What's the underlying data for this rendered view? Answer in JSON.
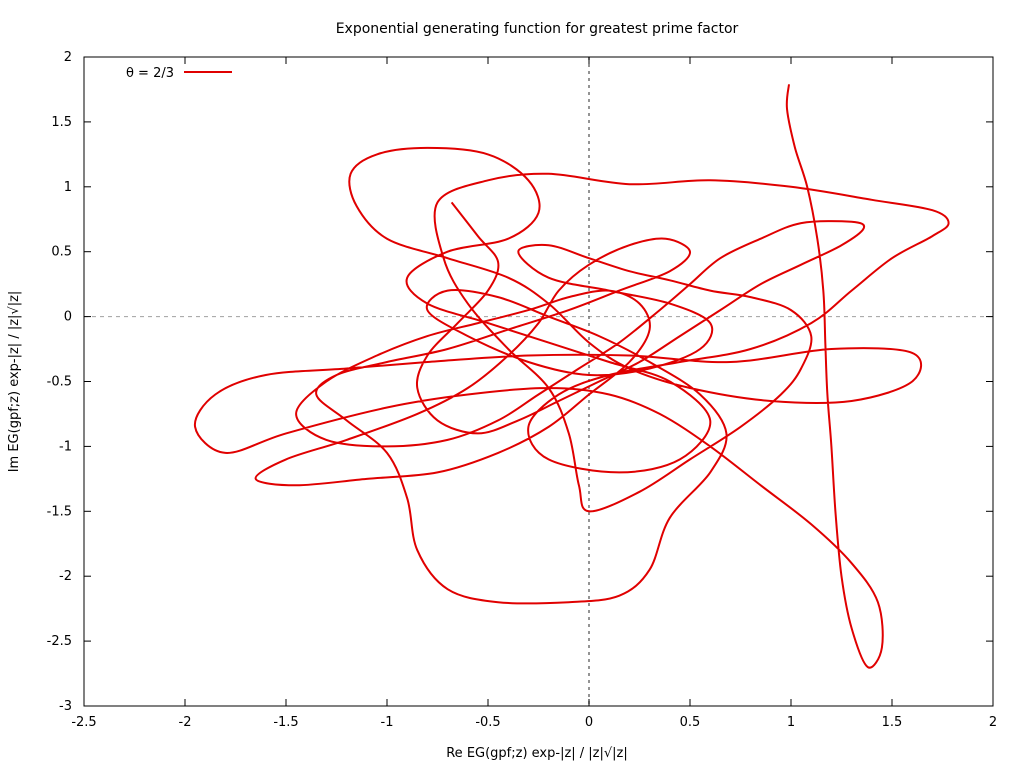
{
  "chart_data": {
    "type": "line",
    "title": "Exponential generating function for greatest prime factor",
    "xlabel": "Re EG(gpf;z) exp-|z| / |z|√|z|",
    "ylabel": "Im EG(gpf;z) exp-|z| / |z|√|z|",
    "xlim": [
      -2.5,
      2
    ],
    "ylim": [
      -3,
      2
    ],
    "xticks": [
      -2.5,
      -2,
      -1.5,
      -1,
      -0.5,
      0,
      0.5,
      1,
      1.5,
      2
    ],
    "xtick_labels": [
      "-2.5",
      "-2",
      "-1.5",
      "-1",
      "-0.5",
      "0",
      "0.5",
      "1",
      "1.5",
      "2"
    ],
    "yticks": [
      -3,
      -2.5,
      -2,
      -1.5,
      -1,
      -0.5,
      0,
      0.5,
      1,
      1.5,
      2
    ],
    "ytick_labels": [
      "-3",
      "-2.5",
      "-2",
      "-1.5",
      "-1",
      "-0.5",
      "0",
      "0.5",
      "1",
      "1.5",
      "2"
    ],
    "zero_axes": true,
    "legend_position": "top-left",
    "series": [
      {
        "name": "θ = 2/3",
        "color": "#e00000",
        "points": [
          [
            0.99,
            1.79
          ],
          [
            0.98,
            1.6
          ],
          [
            1.02,
            1.3
          ],
          [
            1.08,
            1.0
          ],
          [
            1.13,
            0.6
          ],
          [
            1.16,
            0.2
          ],
          [
            1.17,
            -0.2
          ],
          [
            1.18,
            -0.6
          ],
          [
            1.2,
            -1.0
          ],
          [
            1.22,
            -1.5
          ],
          [
            1.25,
            -2.0
          ],
          [
            1.3,
            -2.4
          ],
          [
            1.38,
            -2.7
          ],
          [
            1.45,
            -2.55
          ],
          [
            1.43,
            -2.2
          ],
          [
            1.3,
            -1.9
          ],
          [
            1.1,
            -1.6
          ],
          [
            0.85,
            -1.3
          ],
          [
            0.6,
            -1.0
          ],
          [
            0.35,
            -0.75
          ],
          [
            0.1,
            -0.6
          ],
          [
            -0.2,
            -0.55
          ],
          [
            -0.6,
            -0.6
          ],
          [
            -1.0,
            -0.7
          ],
          [
            -1.5,
            -0.9
          ],
          [
            -1.8,
            -1.05
          ],
          [
            -1.95,
            -0.85
          ],
          [
            -1.85,
            -0.6
          ],
          [
            -1.6,
            -0.45
          ],
          [
            -1.2,
            -0.4
          ],
          [
            -0.8,
            -0.35
          ],
          [
            -0.3,
            -0.3
          ],
          [
            0.2,
            -0.3
          ],
          [
            0.7,
            -0.35
          ],
          [
            1.2,
            -0.25
          ],
          [
            1.6,
            -0.28
          ],
          [
            1.6,
            -0.5
          ],
          [
            1.3,
            -0.65
          ],
          [
            0.9,
            -0.65
          ],
          [
            0.5,
            -0.55
          ],
          [
            0.2,
            -0.4
          ],
          [
            0.0,
            -0.2
          ],
          [
            -0.2,
            0.1
          ],
          [
            -0.4,
            0.3
          ],
          [
            -0.7,
            0.45
          ],
          [
            -1.0,
            0.6
          ],
          [
            -1.15,
            0.85
          ],
          [
            -1.18,
            1.1
          ],
          [
            -1.05,
            1.25
          ],
          [
            -0.8,
            1.3
          ],
          [
            -0.5,
            1.25
          ],
          [
            -0.3,
            1.05
          ],
          [
            -0.25,
            0.8
          ],
          [
            -0.4,
            0.6
          ],
          [
            -0.7,
            0.5
          ],
          [
            -0.9,
            0.3
          ],
          [
            -0.8,
            0.1
          ],
          [
            -0.5,
            -0.05
          ],
          [
            -0.2,
            -0.2
          ],
          [
            0.1,
            -0.35
          ],
          [
            0.4,
            -0.5
          ],
          [
            0.6,
            -0.8
          ],
          [
            0.45,
            -1.1
          ],
          [
            0.15,
            -1.2
          ],
          [
            -0.2,
            -1.1
          ],
          [
            -0.3,
            -0.85
          ],
          [
            -0.15,
            -0.6
          ],
          [
            0.1,
            -0.45
          ],
          [
            0.45,
            -0.35
          ],
          [
            0.8,
            -0.25
          ],
          [
            1.1,
            -0.05
          ],
          [
            1.3,
            0.2
          ],
          [
            1.5,
            0.45
          ],
          [
            1.7,
            0.62
          ],
          [
            1.78,
            0.72
          ],
          [
            1.7,
            0.82
          ],
          [
            1.4,
            0.9
          ],
          [
            1.0,
            1.0
          ],
          [
            0.6,
            1.05
          ],
          [
            0.2,
            1.02
          ],
          [
            -0.2,
            1.1
          ],
          [
            -0.5,
            1.05
          ],
          [
            -0.75,
            0.88
          ],
          [
            -0.72,
            0.45
          ],
          [
            -0.6,
            0.1
          ],
          [
            -0.4,
            -0.25
          ],
          [
            -0.2,
            -0.55
          ],
          [
            -0.1,
            -0.9
          ],
          [
            -0.05,
            -1.3
          ],
          [
            0.0,
            -1.5
          ],
          [
            0.25,
            -1.35
          ],
          [
            0.5,
            -1.1
          ],
          [
            0.75,
            -0.85
          ],
          [
            0.95,
            -0.6
          ],
          [
            1.05,
            -0.4
          ],
          [
            1.1,
            -0.15
          ],
          [
            1.0,
            0.05
          ],
          [
            0.8,
            0.15
          ],
          [
            0.6,
            0.2
          ],
          [
            0.4,
            0.28
          ],
          [
            0.2,
            0.35
          ],
          [
            0.0,
            0.45
          ],
          [
            -0.2,
            0.55
          ],
          [
            -0.35,
            0.5
          ],
          [
            -0.2,
            0.3
          ],
          [
            0.1,
            0.2
          ],
          [
            0.4,
            0.1
          ],
          [
            0.6,
            -0.05
          ],
          [
            0.55,
            -0.25
          ],
          [
            0.3,
            -0.4
          ],
          [
            0.0,
            -0.45
          ],
          [
            -0.3,
            -0.35
          ],
          [
            -0.6,
            -0.15
          ],
          [
            -0.8,
            0.05
          ],
          [
            -0.7,
            0.2
          ],
          [
            -0.45,
            0.15
          ],
          [
            -0.2,
            0.0
          ],
          [
            0.05,
            -0.15
          ],
          [
            0.3,
            -0.35
          ],
          [
            0.55,
            -0.6
          ],
          [
            0.68,
            -0.9
          ],
          [
            0.6,
            -1.2
          ],
          [
            0.4,
            -1.55
          ],
          [
            0.3,
            -1.95
          ],
          [
            0.15,
            -2.15
          ],
          [
            -0.1,
            -2.2
          ],
          [
            -0.45,
            -2.2
          ],
          [
            -0.7,
            -2.1
          ],
          [
            -0.85,
            -1.8
          ],
          [
            -0.9,
            -1.4
          ],
          [
            -1.0,
            -1.05
          ],
          [
            -1.2,
            -0.8
          ],
          [
            -1.35,
            -0.6
          ],
          [
            -1.25,
            -0.45
          ],
          [
            -1.0,
            -0.35
          ],
          [
            -0.7,
            -0.25
          ],
          [
            -0.4,
            -0.1
          ],
          [
            -0.1,
            0.05
          ],
          [
            0.15,
            0.2
          ],
          [
            0.4,
            0.35
          ],
          [
            0.5,
            0.5
          ],
          [
            0.38,
            0.6
          ],
          [
            0.2,
            0.55
          ],
          [
            0.0,
            0.4
          ],
          [
            -0.15,
            0.2
          ],
          [
            -0.25,
            -0.05
          ],
          [
            -0.4,
            -0.3
          ],
          [
            -0.6,
            -0.55
          ],
          [
            -0.85,
            -0.75
          ],
          [
            -1.2,
            -0.95
          ],
          [
            -1.5,
            -1.1
          ],
          [
            -1.65,
            -1.25
          ],
          [
            -1.45,
            -1.3
          ],
          [
            -1.1,
            -1.25
          ],
          [
            -0.75,
            -1.2
          ],
          [
            -0.45,
            -1.05
          ],
          [
            -0.2,
            -0.85
          ],
          [
            0.0,
            -0.6
          ],
          [
            0.2,
            -0.35
          ],
          [
            0.3,
            -0.1
          ],
          [
            0.25,
            0.1
          ],
          [
            0.1,
            0.2
          ],
          [
            -0.1,
            0.15
          ],
          [
            -0.3,
            0.05
          ],
          [
            -0.55,
            -0.05
          ],
          [
            -0.8,
            -0.15
          ],
          [
            -1.05,
            -0.3
          ],
          [
            -1.3,
            -0.5
          ],
          [
            -1.45,
            -0.75
          ],
          [
            -1.3,
            -0.95
          ],
          [
            -1.0,
            -1.0
          ],
          [
            -0.7,
            -0.95
          ],
          [
            -0.45,
            -0.8
          ],
          [
            -0.25,
            -0.6
          ],
          [
            -0.05,
            -0.4
          ],
          [
            0.15,
            -0.2
          ],
          [
            0.35,
            0.05
          ],
          [
            0.5,
            0.25
          ],
          [
            0.65,
            0.45
          ],
          [
            0.85,
            0.6
          ],
          [
            1.05,
            0.72
          ],
          [
            1.3,
            0.73
          ],
          [
            1.36,
            0.68
          ],
          [
            1.25,
            0.55
          ],
          [
            1.05,
            0.4
          ],
          [
            0.85,
            0.25
          ],
          [
            0.65,
            0.05
          ],
          [
            0.45,
            -0.15
          ],
          [
            0.25,
            -0.35
          ],
          [
            0.05,
            -0.5
          ],
          [
            -0.15,
            -0.65
          ],
          [
            -0.35,
            -0.8
          ],
          [
            -0.55,
            -0.9
          ],
          [
            -0.75,
            -0.8
          ],
          [
            -0.85,
            -0.55
          ],
          [
            -0.8,
            -0.3
          ],
          [
            -0.65,
            -0.05
          ],
          [
            -0.5,
            0.2
          ],
          [
            -0.45,
            0.42
          ],
          [
            -0.55,
            0.62
          ],
          [
            -0.68,
            0.88
          ]
        ]
      }
    ]
  }
}
